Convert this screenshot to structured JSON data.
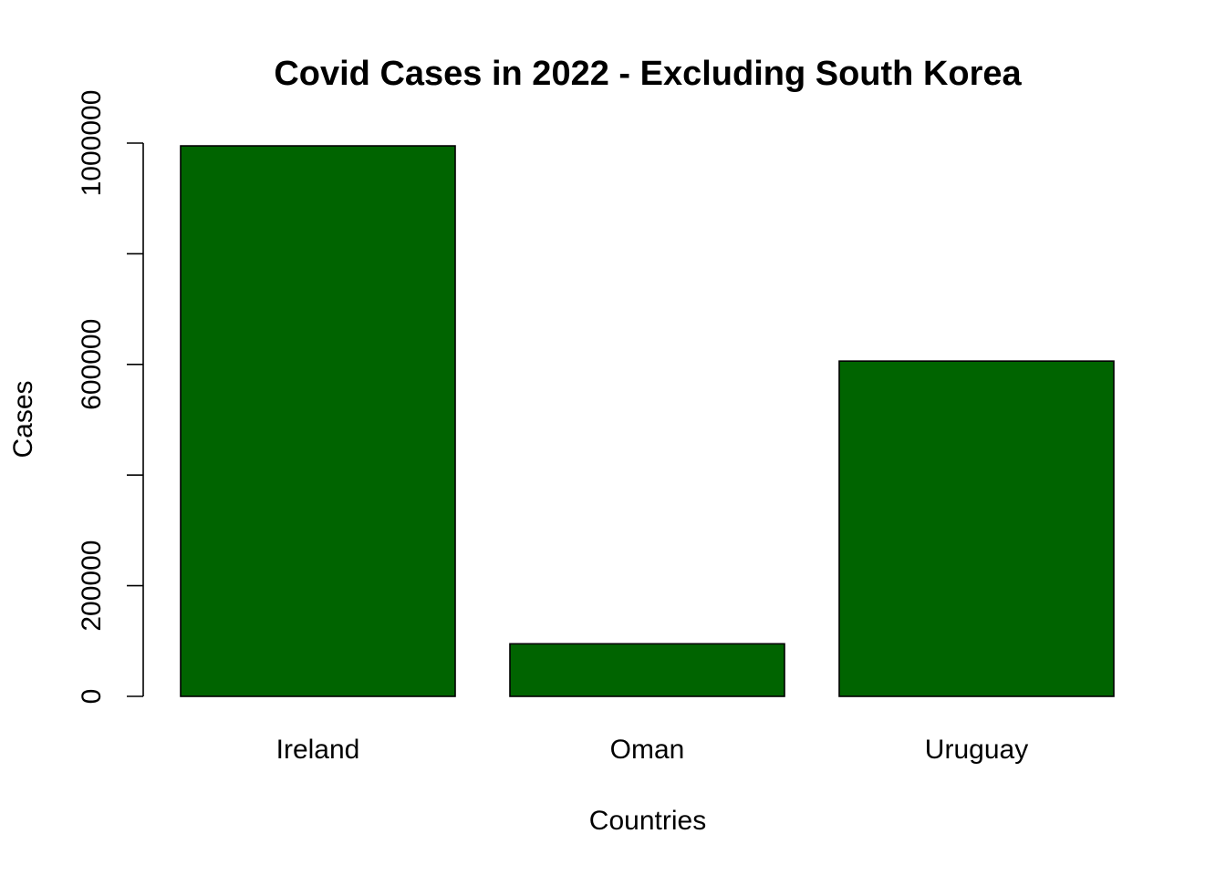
{
  "chart_data": {
    "type": "bar",
    "title": "Covid Cases in 2022 - Excluding South Korea",
    "xlabel": "Countries",
    "ylabel": "Cases",
    "categories": [
      "Ireland",
      "Oman",
      "Uruguay"
    ],
    "values": [
      995000,
      95000,
      606000
    ],
    "ylim": [
      0,
      1000000
    ],
    "yticks": [
      0,
      200000,
      400000,
      600000,
      800000,
      1000000
    ],
    "ytick_labels": [
      "0",
      "200000",
      "",
      "600000",
      "",
      "1000000"
    ],
    "bar_color": "#006400",
    "grid": false,
    "legend": "none"
  }
}
